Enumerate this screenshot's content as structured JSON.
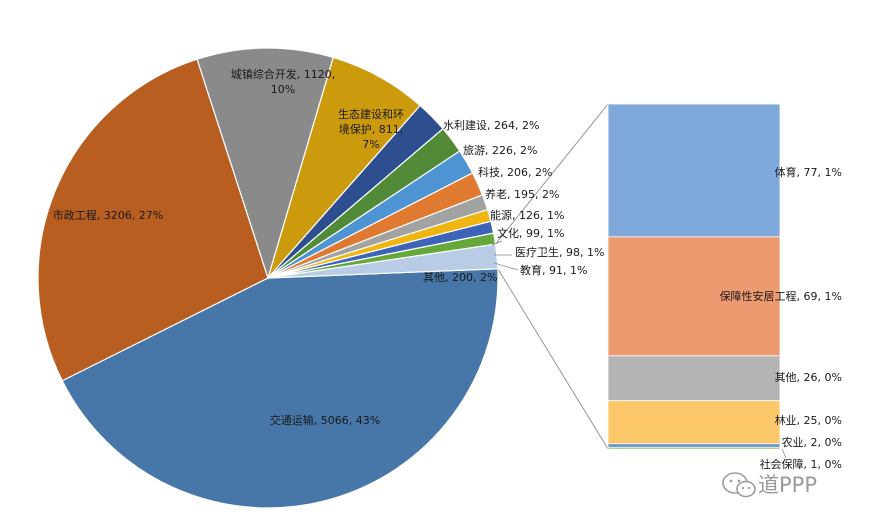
{
  "chart_data": {
    "type": "pie",
    "title": "",
    "series": [
      {
        "name": "",
        "slices": [
          {
            "label": "交通运输",
            "value": 5066,
            "pct": "43%",
            "color": "#4677a8"
          },
          {
            "label": "市政工程",
            "value": 3206,
            "pct": "27%",
            "color": "#b85e21"
          },
          {
            "label": "城镇综合开发",
            "value": 1120,
            "pct": "10%",
            "color": "#8a8a8a"
          },
          {
            "label": "生态建设和环境保护",
            "value": 811,
            "pct": "7%",
            "color": "#cc9a0d"
          },
          {
            "label": "水利建设",
            "value": 264,
            "pct": "2%",
            "color": "#2e4f8f"
          },
          {
            "label": "旅游",
            "value": 226,
            "pct": "2%",
            "color": "#528b38"
          },
          {
            "label": "科技",
            "value": 206,
            "pct": "2%",
            "color": "#4f94d2"
          },
          {
            "label": "养老",
            "value": 195,
            "pct": "2%",
            "color": "#e07a31"
          },
          {
            "label": "能源",
            "value": 126,
            "pct": "1%",
            "color": "#a2a2a2"
          },
          {
            "label": "文化",
            "value": 99,
            "pct": "1%",
            "color": "#efb510"
          },
          {
            "label": "医疗卫生",
            "value": 98,
            "pct": "1%",
            "color": "#3c64b8"
          },
          {
            "label": "教育",
            "value": 91,
            "pct": "1%",
            "color": "#66a83a"
          },
          {
            "label": "其他",
            "value": 200,
            "pct": "2%",
            "color": "#b8cce6"
          }
        ]
      }
    ],
    "breakdown_of": "其他",
    "breakdown": [
      {
        "label": "体育",
        "value": 77,
        "pct": "1%",
        "color": "#7ea9da"
      },
      {
        "label": "保障性安居工程",
        "value": 69,
        "pct": "1%",
        "color": "#ee9a70"
      },
      {
        "label": "其他",
        "value": 26,
        "pct": "0%",
        "color": "#b4b4b4"
      },
      {
        "label": "林业",
        "value": 25,
        "pct": "0%",
        "color": "#fdc86a"
      },
      {
        "label": "农业",
        "value": 2,
        "pct": "0%",
        "color": "#5f8fce"
      },
      {
        "label": "社会保障",
        "value": 1,
        "pct": "0%",
        "color": "#80b052"
      }
    ],
    "legend": "none"
  },
  "watermark": {
    "text": "道PPP",
    "icon": "wechat-icon"
  }
}
